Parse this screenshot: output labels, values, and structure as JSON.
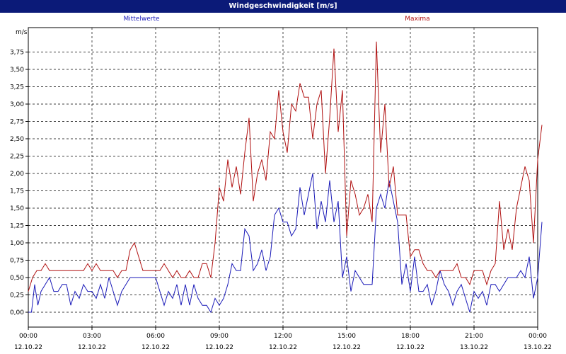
{
  "chart_data": {
    "type": "line",
    "title": "Windgeschwindigkeit [m/s]",
    "ylabel": "m/s",
    "ylim": [
      0,
      4
    ],
    "y_ticks": [
      "0,00",
      "0,25",
      "0,50",
      "0,75",
      "1,00",
      "1,25",
      "1,50",
      "1,75",
      "2,00",
      "2,25",
      "2,50",
      "2,75",
      "3,00",
      "3,25",
      "3,50",
      "3,75"
    ],
    "x_ticks": [
      {
        "time": "00:00",
        "date": "12.10.22"
      },
      {
        "time": "03:00",
        "date": "12.10.22"
      },
      {
        "time": "06:00",
        "date": "12.10.22"
      },
      {
        "time": "09:00",
        "date": "12.10.22"
      },
      {
        "time": "12:00",
        "date": "12.10.22"
      },
      {
        "time": "15:00",
        "date": "12.10.22"
      },
      {
        "time": "18:00",
        "date": "12.10.22"
      },
      {
        "time": "21:00",
        "date": "13.10.22"
      },
      {
        "time": "00:00",
        "date": "13.10.22"
      }
    ],
    "grid": true,
    "series": [
      {
        "name": "Mittelwerte",
        "color": "#1a1ab8",
        "points": [
          [
            0,
            0
          ],
          [
            0.15,
            0
          ],
          [
            0.3,
            0.4
          ],
          [
            0.45,
            0.1
          ],
          [
            0.6,
            0.3
          ],
          [
            0.8,
            0.4
          ],
          [
            1.0,
            0.5
          ],
          [
            1.2,
            0.3
          ],
          [
            1.4,
            0.3
          ],
          [
            1.6,
            0.4
          ],
          [
            1.8,
            0.4
          ],
          [
            2.0,
            0.1
          ],
          [
            2.2,
            0.3
          ],
          [
            2.4,
            0.2
          ],
          [
            2.6,
            0.4
          ],
          [
            2.8,
            0.3
          ],
          [
            3.0,
            0.3
          ],
          [
            3.2,
            0.2
          ],
          [
            3.4,
            0.4
          ],
          [
            3.6,
            0.2
          ],
          [
            3.8,
            0.5
          ],
          [
            4.0,
            0.3
          ],
          [
            4.2,
            0.1
          ],
          [
            4.4,
            0.3
          ],
          [
            4.6,
            0.4
          ],
          [
            4.8,
            0.5
          ],
          [
            5.0,
            0.5
          ],
          [
            5.2,
            0.5
          ],
          [
            5.4,
            0.5
          ],
          [
            5.6,
            0.5
          ],
          [
            5.8,
            0.5
          ],
          [
            6.0,
            0.5
          ],
          [
            6.2,
            0.3
          ],
          [
            6.4,
            0.1
          ],
          [
            6.6,
            0.3
          ],
          [
            6.8,
            0.2
          ],
          [
            7.0,
            0.4
          ],
          [
            7.2,
            0.1
          ],
          [
            7.4,
            0.4
          ],
          [
            7.6,
            0.1
          ],
          [
            7.8,
            0.4
          ],
          [
            8.0,
            0.2
          ],
          [
            8.2,
            0.1
          ],
          [
            8.4,
            0.1
          ],
          [
            8.6,
            0
          ],
          [
            8.8,
            0.2
          ],
          [
            9.0,
            0.1
          ],
          [
            9.2,
            0.2
          ],
          [
            9.4,
            0.4
          ],
          [
            9.6,
            0.7
          ],
          [
            9.8,
            0.6
          ],
          [
            10.0,
            0.6
          ],
          [
            10.2,
            1.2
          ],
          [
            10.4,
            1.1
          ],
          [
            10.6,
            0.6
          ],
          [
            10.8,
            0.7
          ],
          [
            11.0,
            0.9
          ],
          [
            11.2,
            0.6
          ],
          [
            11.4,
            0.8
          ],
          [
            11.6,
            1.4
          ],
          [
            11.8,
            1.5
          ],
          [
            12.0,
            1.3
          ],
          [
            12.2,
            1.3
          ],
          [
            12.4,
            1.1
          ],
          [
            12.6,
            1.2
          ],
          [
            12.8,
            1.8
          ],
          [
            13.0,
            1.4
          ],
          [
            13.2,
            1.7
          ],
          [
            13.4,
            2.0
          ],
          [
            13.6,
            1.2
          ],
          [
            13.8,
            1.6
          ],
          [
            14.0,
            1.3
          ],
          [
            14.2,
            1.9
          ],
          [
            14.4,
            1.3
          ],
          [
            14.6,
            1.6
          ],
          [
            14.8,
            0.5
          ],
          [
            15.0,
            0.8
          ],
          [
            15.2,
            0.3
          ],
          [
            15.4,
            0.6
          ],
          [
            15.6,
            0.5
          ],
          [
            15.8,
            0.4
          ],
          [
            16.0,
            0.4
          ],
          [
            16.2,
            0.4
          ],
          [
            16.4,
            1.5
          ],
          [
            16.6,
            1.7
          ],
          [
            16.8,
            1.5
          ],
          [
            17.0,
            1.9
          ],
          [
            17.2,
            1.6
          ],
          [
            17.4,
            1.3
          ],
          [
            17.6,
            0.4
          ],
          [
            17.8,
            0.7
          ],
          [
            18.0,
            0.3
          ],
          [
            18.2,
            0.8
          ],
          [
            18.4,
            0.3
          ],
          [
            18.6,
            0.3
          ],
          [
            18.8,
            0.4
          ],
          [
            19.0,
            0.1
          ],
          [
            19.2,
            0.3
          ],
          [
            19.4,
            0.6
          ],
          [
            19.6,
            0.4
          ],
          [
            19.8,
            0.3
          ],
          [
            20.0,
            0.1
          ],
          [
            20.2,
            0.3
          ],
          [
            20.4,
            0.4
          ],
          [
            20.6,
            0.2
          ],
          [
            20.8,
            0
          ],
          [
            21.0,
            0.3
          ],
          [
            21.2,
            0.2
          ],
          [
            21.4,
            0.3
          ],
          [
            21.6,
            0.1
          ],
          [
            21.8,
            0.4
          ],
          [
            22.0,
            0.4
          ],
          [
            22.2,
            0.3
          ],
          [
            22.4,
            0.4
          ],
          [
            22.6,
            0.5
          ],
          [
            22.8,
            0.5
          ],
          [
            23.0,
            0.5
          ],
          [
            23.2,
            0.6
          ],
          [
            23.4,
            0.5
          ],
          [
            23.6,
            0.8
          ],
          [
            23.8,
            0.2
          ],
          [
            24.0,
            0.5
          ],
          [
            24.2,
            1.3
          ]
        ]
      },
      {
        "name": "Maxima",
        "color": "#b01010",
        "points": [
          [
            0,
            0.3
          ],
          [
            0.2,
            0.5
          ],
          [
            0.4,
            0.6
          ],
          [
            0.6,
            0.6
          ],
          [
            0.8,
            0.7
          ],
          [
            1.0,
            0.6
          ],
          [
            1.2,
            0.6
          ],
          [
            1.4,
            0.6
          ],
          [
            1.6,
            0.6
          ],
          [
            1.8,
            0.6
          ],
          [
            2.0,
            0.6
          ],
          [
            2.2,
            0.6
          ],
          [
            2.4,
            0.6
          ],
          [
            2.6,
            0.6
          ],
          [
            2.8,
            0.7
          ],
          [
            3.0,
            0.6
          ],
          [
            3.2,
            0.7
          ],
          [
            3.4,
            0.6
          ],
          [
            3.6,
            0.6
          ],
          [
            3.8,
            0.6
          ],
          [
            4.0,
            0.6
          ],
          [
            4.2,
            0.5
          ],
          [
            4.4,
            0.6
          ],
          [
            4.6,
            0.6
          ],
          [
            4.8,
            0.9
          ],
          [
            5.0,
            1.0
          ],
          [
            5.2,
            0.8
          ],
          [
            5.4,
            0.6
          ],
          [
            5.6,
            0.6
          ],
          [
            5.8,
            0.6
          ],
          [
            6.0,
            0.6
          ],
          [
            6.2,
            0.6
          ],
          [
            6.4,
            0.7
          ],
          [
            6.6,
            0.6
          ],
          [
            6.8,
            0.5
          ],
          [
            7.0,
            0.6
          ],
          [
            7.2,
            0.5
          ],
          [
            7.4,
            0.5
          ],
          [
            7.6,
            0.6
          ],
          [
            7.8,
            0.5
          ],
          [
            8.0,
            0.5
          ],
          [
            8.2,
            0.7
          ],
          [
            8.4,
            0.7
          ],
          [
            8.6,
            0.5
          ],
          [
            8.8,
            1.0
          ],
          [
            9.0,
            1.8
          ],
          [
            9.2,
            1.6
          ],
          [
            9.4,
            2.2
          ],
          [
            9.6,
            1.8
          ],
          [
            9.8,
            2.1
          ],
          [
            10.0,
            1.7
          ],
          [
            10.2,
            2.3
          ],
          [
            10.4,
            2.8
          ],
          [
            10.6,
            1.6
          ],
          [
            10.8,
            2.0
          ],
          [
            11.0,
            2.2
          ],
          [
            11.2,
            1.9
          ],
          [
            11.4,
            2.6
          ],
          [
            11.6,
            2.5
          ],
          [
            11.8,
            3.2
          ],
          [
            12.0,
            2.6
          ],
          [
            12.2,
            2.3
          ],
          [
            12.4,
            3.0
          ],
          [
            12.6,
            2.9
          ],
          [
            12.8,
            3.3
          ],
          [
            13.0,
            3.1
          ],
          [
            13.2,
            3.1
          ],
          [
            13.4,
            2.5
          ],
          [
            13.6,
            3.0
          ],
          [
            13.8,
            3.2
          ],
          [
            14.0,
            2.0
          ],
          [
            14.2,
            2.8
          ],
          [
            14.4,
            3.8
          ],
          [
            14.6,
            2.6
          ],
          [
            14.8,
            3.2
          ],
          [
            15.0,
            1.1
          ],
          [
            15.2,
            1.9
          ],
          [
            15.4,
            1.7
          ],
          [
            15.6,
            1.4
          ],
          [
            15.8,
            1.5
          ],
          [
            16.0,
            1.7
          ],
          [
            16.2,
            1.3
          ],
          [
            16.4,
            3.9
          ],
          [
            16.6,
            2.3
          ],
          [
            16.8,
            3.0
          ],
          [
            17.0,
            1.8
          ],
          [
            17.2,
            2.1
          ],
          [
            17.4,
            1.4
          ],
          [
            17.6,
            1.4
          ],
          [
            17.8,
            1.4
          ],
          [
            18.0,
            0.8
          ],
          [
            18.2,
            0.9
          ],
          [
            18.4,
            0.9
          ],
          [
            18.6,
            0.7
          ],
          [
            18.8,
            0.6
          ],
          [
            19.0,
            0.6
          ],
          [
            19.2,
            0.5
          ],
          [
            19.4,
            0.6
          ],
          [
            19.6,
            0.6
          ],
          [
            19.8,
            0.6
          ],
          [
            20.0,
            0.6
          ],
          [
            20.2,
            0.7
          ],
          [
            20.4,
            0.5
          ],
          [
            20.6,
            0.5
          ],
          [
            20.8,
            0.4
          ],
          [
            21.0,
            0.6
          ],
          [
            21.2,
            0.6
          ],
          [
            21.4,
            0.6
          ],
          [
            21.6,
            0.4
          ],
          [
            21.8,
            0.6
          ],
          [
            22.0,
            0.7
          ],
          [
            22.2,
            1.6
          ],
          [
            22.4,
            0.9
          ],
          [
            22.6,
            1.2
          ],
          [
            22.8,
            0.9
          ],
          [
            23.0,
            1.5
          ],
          [
            23.2,
            1.8
          ],
          [
            23.4,
            2.1
          ],
          [
            23.6,
            1.9
          ],
          [
            23.8,
            1.0
          ],
          [
            24.0,
            2.2
          ],
          [
            24.2,
            2.7
          ]
        ]
      }
    ]
  }
}
